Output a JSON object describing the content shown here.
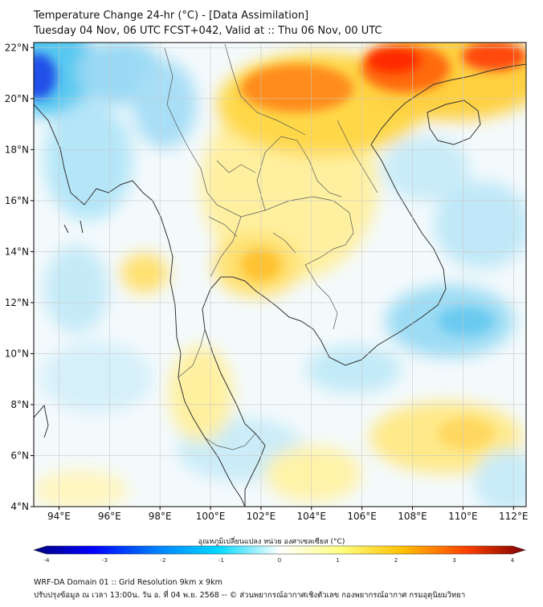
{
  "title_line1": "Temperature Change 24-hr (°C) - [Data Assimilation]",
  "title_line2": "Tuesday 04 Nov, 06 UTC FCST+042, Valid at :: Thu 06 Nov, 00 UTC",
  "lat_labels": [
    "22°N",
    "20°N",
    "18°N",
    "16°N",
    "14°N",
    "12°N",
    "10°N",
    "8°N",
    "6°N",
    "4°N"
  ],
  "lat_values": [
    22,
    20,
    18,
    16,
    14,
    12,
    10,
    8,
    6,
    4
  ],
  "lon_labels": [
    "94°E",
    "96°E",
    "98°E",
    "100°E",
    "102°E",
    "104°E",
    "106°E",
    "108°E",
    "110°E",
    "112°E"
  ],
  "lon_values": [
    94,
    96,
    98,
    100,
    102,
    104,
    106,
    108,
    110,
    112
  ],
  "extent": {
    "lon_min": 93,
    "lon_max": 112.5,
    "lat_min": 4,
    "lat_max": 22.2
  },
  "colorbar": {
    "title": "อุณหภูมิเปลี่ยนแปลง หน่วย องศาเซลเซียส (°C)",
    "ticks": [
      "-4",
      "-3",
      "-2",
      "-1",
      "0",
      "1",
      "2",
      "3",
      "4"
    ],
    "min": -4,
    "max": 4,
    "colors": [
      "#00007f",
      "#0000ff",
      "#0080ff",
      "#00d8ff",
      "#ffffff",
      "#ffff80",
      "#ffc000",
      "#ff4000",
      "#7f0000"
    ]
  },
  "footer_line1": "WRF-DA Domain 01 :: Grid Resolution 9km x 9km",
  "footer_line2": "ปรับปรุงข้อมูล ณ เวลา 13:00น. วัน อ. ที่ 04 พ.ย. 2568 -- © ส่วนพยากรณ์อากาศเชิงตัวเลข กองพยากรณ์อากาศ กรมอุตุนิยมวิทยา"
}
